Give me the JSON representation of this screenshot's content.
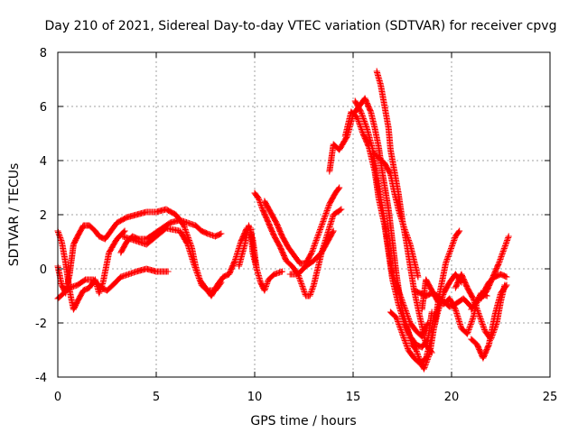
{
  "chart_data": {
    "type": "scatter",
    "title": "Day 210 of 2021, Sidereal Day-to-day VTEC variation (SDTVAR) for receiver cpvg",
    "xlabel": "GPS time / hours",
    "ylabel": "SDTVAR / TECUs",
    "xlim": [
      0,
      25
    ],
    "ylim": [
      -4,
      8
    ],
    "xticks": [
      "0",
      "5",
      "10",
      "15",
      "20",
      "25"
    ],
    "yticks": [
      "-4",
      "-2",
      "0",
      "2",
      "4",
      "6",
      "8"
    ],
    "grid": true,
    "marker": "plus",
    "series_color": "#ff0000",
    "tracks": [
      [
        [
          0.0,
          1.4
        ],
        [
          0.2,
          1.0
        ],
        [
          0.4,
          0.2
        ],
        [
          0.6,
          -0.8
        ],
        [
          0.8,
          -1.5
        ],
        [
          1.0,
          -1.2
        ],
        [
          1.3,
          -0.8
        ],
        [
          1.6,
          -0.7
        ],
        [
          1.9,
          -0.4
        ],
        [
          2.1,
          -0.9
        ],
        [
          2.3,
          -0.5
        ],
        [
          2.6,
          0.6
        ],
        [
          3.0,
          1.1
        ],
        [
          3.4,
          1.4
        ]
      ],
      [
        [
          0.0,
          0.1
        ],
        [
          0.2,
          -0.6
        ],
        [
          0.4,
          -0.9
        ],
        [
          0.6,
          -0.2
        ],
        [
          0.8,
          0.9
        ],
        [
          1.0,
          1.2
        ],
        [
          1.3,
          1.6
        ],
        [
          1.6,
          1.6
        ],
        [
          1.9,
          1.4
        ],
        [
          2.1,
          1.2
        ],
        [
          2.4,
          1.1
        ],
        [
          2.7,
          1.4
        ],
        [
          3.0,
          1.7
        ],
        [
          3.5,
          1.9
        ],
        [
          4.0,
          2.0
        ],
        [
          4.5,
          2.1
        ],
        [
          5.0,
          2.1
        ],
        [
          5.5,
          2.2
        ],
        [
          6.0,
          2.0
        ],
        [
          6.4,
          1.6
        ],
        [
          6.8,
          0.8
        ],
        [
          7.0,
          0.1
        ],
        [
          7.3,
          -0.6
        ],
        [
          7.6,
          -0.8
        ],
        [
          8.0,
          -0.8
        ],
        [
          8.3,
          -0.5
        ]
      ],
      [
        [
          0.0,
          -1.1
        ],
        [
          0.3,
          -0.9
        ],
        [
          0.6,
          -0.7
        ],
        [
          1.0,
          -0.6
        ],
        [
          1.4,
          -0.4
        ],
        [
          1.8,
          -0.4
        ],
        [
          2.2,
          -0.7
        ],
        [
          2.5,
          -0.8
        ],
        [
          2.8,
          -0.6
        ],
        [
          3.2,
          -0.3
        ],
        [
          3.6,
          -0.2
        ],
        [
          4.0,
          -0.1
        ],
        [
          4.5,
          0.0
        ],
        [
          5.0,
          -0.1
        ],
        [
          5.6,
          -0.1
        ]
      ],
      [
        [
          3.2,
          0.6
        ],
        [
          3.5,
          1.0
        ],
        [
          3.8,
          1.2
        ],
        [
          4.1,
          1.1
        ],
        [
          4.5,
          1.1
        ],
        [
          4.9,
          1.3
        ],
        [
          5.3,
          1.5
        ],
        [
          5.7,
          1.7
        ],
        [
          6.2,
          1.8
        ],
        [
          6.6,
          1.7
        ],
        [
          7.0,
          1.6
        ],
        [
          7.3,
          1.4
        ],
        [
          7.6,
          1.3
        ],
        [
          8.0,
          1.2
        ],
        [
          8.3,
          1.3
        ]
      ],
      [
        [
          3.3,
          1.2
        ],
        [
          4.5,
          0.9
        ],
        [
          5.5,
          1.5
        ],
        [
          6.2,
          1.4
        ],
        [
          6.6,
          0.9
        ],
        [
          6.9,
          0.2
        ],
        [
          7.2,
          -0.4
        ],
        [
          7.5,
          -0.7
        ],
        [
          7.8,
          -1.0
        ],
        [
          8.1,
          -0.6
        ],
        [
          8.4,
          -0.3
        ],
        [
          8.7,
          -0.2
        ],
        [
          9.0,
          0.3
        ],
        [
          9.3,
          1.0
        ],
        [
          9.6,
          1.5
        ],
        [
          9.8,
          1.5
        ],
        [
          9.9,
          0.6
        ],
        [
          10.1,
          0.0
        ]
      ],
      [
        [
          9.2,
          0.1
        ],
        [
          9.5,
          0.9
        ],
        [
          9.7,
          1.6
        ],
        [
          9.9,
          1.1
        ],
        [
          10.1,
          0.0
        ],
        [
          10.3,
          -0.5
        ],
        [
          10.5,
          -0.8
        ],
        [
          10.7,
          -0.4
        ],
        [
          11.0,
          -0.2
        ],
        [
          11.4,
          -0.1
        ]
      ],
      [
        [
          10.0,
          2.8
        ],
        [
          10.2,
          2.6
        ],
        [
          10.4,
          2.2
        ],
        [
          10.7,
          1.7
        ],
        [
          11.0,
          1.2
        ],
        [
          11.3,
          0.8
        ],
        [
          11.6,
          0.3
        ],
        [
          11.9,
          0.1
        ],
        [
          12.2,
          -0.2
        ],
        [
          12.4,
          -0.6
        ],
        [
          12.6,
          -1.0
        ],
        [
          12.8,
          -1.0
        ],
        [
          13.0,
          -0.6
        ],
        [
          13.2,
          0.0
        ],
        [
          13.4,
          0.6
        ],
        [
          13.7,
          1.3
        ],
        [
          14.0,
          2.0
        ],
        [
          14.4,
          2.2
        ]
      ],
      [
        [
          10.5,
          2.5
        ],
        [
          10.8,
          2.1
        ],
        [
          11.1,
          1.7
        ],
        [
          11.4,
          1.2
        ],
        [
          11.7,
          0.8
        ],
        [
          12.0,
          0.5
        ],
        [
          12.3,
          0.2
        ],
        [
          12.6,
          0.2
        ],
        [
          12.9,
          0.6
        ],
        [
          13.2,
          1.2
        ],
        [
          13.5,
          1.8
        ],
        [
          13.8,
          2.4
        ],
        [
          14.1,
          2.8
        ],
        [
          14.3,
          3.0
        ]
      ],
      [
        [
          11.8,
          -0.2
        ],
        [
          12.2,
          -0.2
        ],
        [
          12.6,
          0.1
        ],
        [
          13.0,
          0.3
        ],
        [
          13.4,
          0.6
        ],
        [
          13.7,
          1.0
        ],
        [
          14.0,
          1.4
        ]
      ],
      [
        [
          13.8,
          3.6
        ],
        [
          14.0,
          4.6
        ],
        [
          14.3,
          4.4
        ],
        [
          14.7,
          4.9
        ],
        [
          15.0,
          5.7
        ],
        [
          15.3,
          6.0
        ],
        [
          15.6,
          6.3
        ],
        [
          15.9,
          5.8
        ],
        [
          16.1,
          5.2
        ],
        [
          16.3,
          4.5
        ],
        [
          16.5,
          3.5
        ],
        [
          16.8,
          2.2
        ],
        [
          17.0,
          1.0
        ],
        [
          17.2,
          -0.2
        ],
        [
          17.4,
          -1.2
        ],
        [
          17.6,
          -1.8
        ],
        [
          17.8,
          -2.3
        ],
        [
          18.0,
          -2.8
        ],
        [
          18.2,
          -3.0
        ],
        [
          18.4,
          -3.4
        ],
        [
          18.6,
          -3.7
        ],
        [
          18.9,
          -3.1
        ],
        [
          19.1,
          -2.2
        ],
        [
          19.4,
          -0.9
        ],
        [
          19.7,
          0.2
        ],
        [
          20.0,
          0.8
        ],
        [
          20.2,
          1.2
        ],
        [
          20.4,
          1.4
        ]
      ],
      [
        [
          14.6,
          4.9
        ],
        [
          14.9,
          5.8
        ],
        [
          15.2,
          5.6
        ],
        [
          15.5,
          5.0
        ],
        [
          15.8,
          4.5
        ],
        [
          16.1,
          3.6
        ],
        [
          16.3,
          2.6
        ],
        [
          16.6,
          1.6
        ],
        [
          16.8,
          0.6
        ],
        [
          17.0,
          -0.4
        ],
        [
          17.3,
          -1.3
        ],
        [
          17.6,
          -2.0
        ],
        [
          17.9,
          -2.5
        ],
        [
          18.2,
          -2.8
        ],
        [
          18.5,
          -2.9
        ],
        [
          18.8,
          -2.6
        ],
        [
          19.0,
          -1.6
        ]
      ],
      [
        [
          15.1,
          6.2
        ],
        [
          15.4,
          5.8
        ],
        [
          15.7,
          5.2
        ],
        [
          16.0,
          4.4
        ],
        [
          16.2,
          3.4
        ],
        [
          16.4,
          2.6
        ],
        [
          16.6,
          1.8
        ],
        [
          16.8,
          0.8
        ],
        [
          17.0,
          -0.2
        ],
        [
          17.3,
          -0.8
        ],
        [
          17.6,
          -1.4
        ],
        [
          17.9,
          -2.0
        ],
        [
          18.2,
          -2.3
        ],
        [
          18.5,
          -2.5
        ],
        [
          18.8,
          -2.0
        ]
      ],
      [
        [
          16.2,
          7.3
        ],
        [
          16.4,
          6.8
        ],
        [
          16.6,
          6.0
        ],
        [
          16.8,
          5.2
        ],
        [
          16.9,
          4.4
        ],
        [
          17.1,
          3.6
        ],
        [
          17.3,
          2.8
        ],
        [
          17.5,
          1.8
        ],
        [
          17.7,
          1.0
        ],
        [
          17.9,
          0.1
        ],
        [
          18.1,
          -0.8
        ],
        [
          18.4,
          -1.8
        ],
        [
          18.7,
          -2.8
        ],
        [
          19.0,
          -3.1
        ]
      ],
      [
        [
          16.0,
          4.3
        ],
        [
          16.3,
          4.1
        ],
        [
          16.6,
          3.9
        ],
        [
          16.9,
          3.5
        ],
        [
          17.1,
          2.8
        ],
        [
          17.3,
          2.2
        ],
        [
          17.6,
          1.5
        ],
        [
          17.9,
          0.9
        ],
        [
          18.1,
          0.3
        ],
        [
          18.3,
          -0.3
        ]
      ],
      [
        [
          16.9,
          -1.6
        ],
        [
          17.2,
          -1.8
        ],
        [
          17.5,
          -2.4
        ],
        [
          17.8,
          -3.0
        ],
        [
          18.1,
          -3.3
        ],
        [
          18.4,
          -3.5
        ],
        [
          18.7,
          -3.3
        ],
        [
          19.0,
          -2.5
        ],
        [
          19.3,
          -1.6
        ],
        [
          19.6,
          -0.9
        ],
        [
          19.9,
          -0.5
        ],
        [
          20.2,
          -0.2
        ],
        [
          20.5,
          -0.5
        ]
      ],
      [
        [
          18.5,
          -1.5
        ],
        [
          18.7,
          -0.4
        ],
        [
          19.0,
          -0.8
        ],
        [
          19.3,
          -1.2
        ],
        [
          19.6,
          -1.3
        ],
        [
          19.9,
          -1.1
        ],
        [
          20.2,
          -1.5
        ],
        [
          20.5,
          -2.2
        ],
        [
          20.8,
          -2.4
        ],
        [
          21.1,
          -1.8
        ],
        [
          21.3,
          -1.2
        ],
        [
          21.5,
          -0.9
        ],
        [
          21.8,
          -1.0
        ]
      ],
      [
        [
          18.1,
          -0.8
        ],
        [
          18.4,
          -0.9
        ],
        [
          18.7,
          -1.0
        ],
        [
          19.0,
          -0.9
        ],
        [
          19.3,
          -1.0
        ],
        [
          19.6,
          -1.2
        ],
        [
          19.9,
          -1.4
        ],
        [
          20.2,
          -1.3
        ],
        [
          20.6,
          -1.1
        ],
        [
          21.0,
          -1.4
        ]
      ],
      [
        [
          20.2,
          -0.7
        ],
        [
          20.5,
          -0.2
        ],
        [
          20.8,
          -0.7
        ],
        [
          21.1,
          -1.1
        ],
        [
          21.4,
          -1.7
        ],
        [
          21.7,
          -2.3
        ],
        [
          22.0,
          -2.6
        ],
        [
          22.3,
          -2.0
        ],
        [
          22.5,
          -1.2
        ],
        [
          22.7,
          -0.6
        ]
      ],
      [
        [
          21.0,
          -2.6
        ],
        [
          21.3,
          -2.8
        ],
        [
          21.6,
          -3.3
        ],
        [
          21.9,
          -2.8
        ],
        [
          22.2,
          -1.7
        ],
        [
          22.5,
          -0.9
        ],
        [
          22.8,
          -0.6
        ]
      ],
      [
        [
          21.5,
          -1.1
        ],
        [
          21.8,
          -0.8
        ],
        [
          22.1,
          -0.3
        ],
        [
          22.4,
          0.2
        ],
        [
          22.6,
          0.6
        ],
        [
          22.8,
          1.0
        ],
        [
          22.9,
          1.2
        ]
      ],
      [
        [
          21.0,
          -1.5
        ],
        [
          21.3,
          -1.2
        ],
        [
          21.6,
          -0.9
        ],
        [
          21.9,
          -0.5
        ],
        [
          22.2,
          -0.3
        ],
        [
          22.5,
          -0.2
        ],
        [
          22.8,
          -0.3
        ]
      ]
    ]
  }
}
